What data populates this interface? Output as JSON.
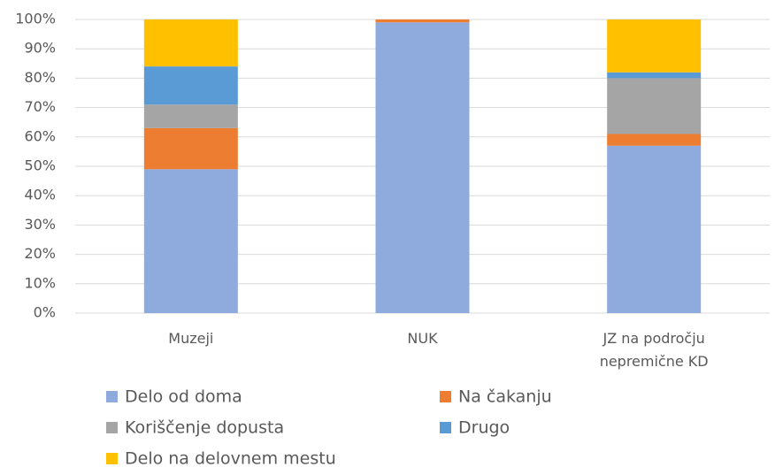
{
  "chart_data": {
    "type": "stacked_bar",
    "categories": [
      "Muzeji",
      "NUK",
      "JZ na področju nepremične KD"
    ],
    "series": [
      {
        "name": "Delo od doma",
        "color": "#8faadc",
        "values": [
          49,
          99,
          57
        ]
      },
      {
        "name": "Na čakanju",
        "color": "#ed7d31",
        "values": [
          14,
          1,
          4
        ]
      },
      {
        "name": "Koriščenje dopusta",
        "color": "#a5a5a5",
        "values": [
          8,
          0,
          19
        ]
      },
      {
        "name": "Drugo",
        "color": "#5b9bd5",
        "values": [
          13,
          0,
          2
        ]
      },
      {
        "name": "Delo na delovnem mestu",
        "color": "#ffc000",
        "values": [
          16,
          0,
          18
        ]
      }
    ],
    "ylim": [
      0,
      100
    ],
    "yticks": [
      {
        "value": 0,
        "label": "0%"
      },
      {
        "value": 10,
        "label": "10%"
      },
      {
        "value": 20,
        "label": "20%"
      },
      {
        "value": 30,
        "label": "30%"
      },
      {
        "value": 40,
        "label": "40%"
      },
      {
        "value": 50,
        "label": "50%"
      },
      {
        "value": 60,
        "label": "60%"
      },
      {
        "value": 70,
        "label": "70%"
      },
      {
        "value": 80,
        "label": "80%"
      },
      {
        "value": 90,
        "label": "90%"
      },
      {
        "value": 100,
        "label": "100%"
      }
    ],
    "grid": true
  }
}
